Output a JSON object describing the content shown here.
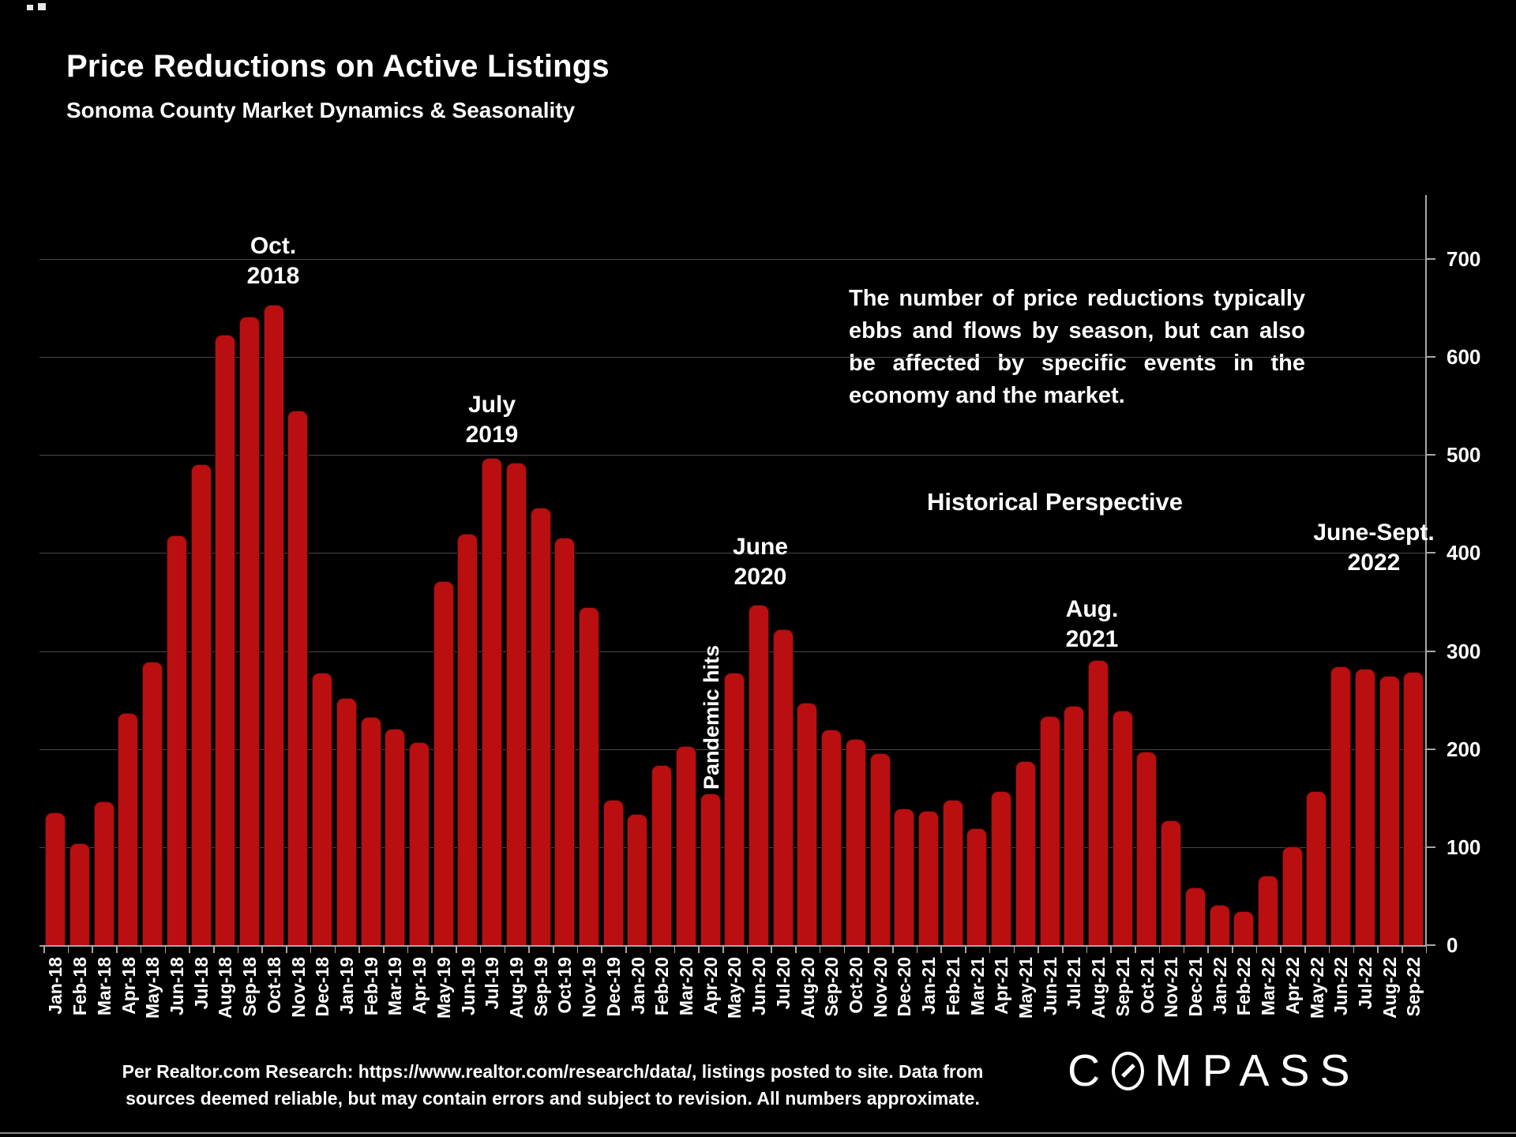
{
  "page": {
    "background": "#000000",
    "accent_red": "#b90f10",
    "bottom_rule_color": "#8a8a8a"
  },
  "header": {
    "title": "Price Reductions on Active Listings",
    "subtitle": "Sonoma County Market Dynamics & Seasonality"
  },
  "commentary": {
    "paragraph": "The number of price reductions typically ebbs and flows by season, but can also be affected by specific events in the economy and the market.",
    "heading": "Historical Perspective"
  },
  "footer": {
    "line1": "Per Realtor.com Research:  https://www.realtor.com/research/data/, listings posted to site. Data from",
    "line2": "sources deemed reliable, but may contain errors and subject to revision. All numbers approximate."
  },
  "brand": {
    "logo_text": "COMPASS",
    "prefix": "C",
    "suffix": "MPASS",
    "o_icon": "compass-slashed-o"
  },
  "chart_data": {
    "type": "bar",
    "title": "Price Reductions on Active Listings",
    "subtitle": "Sonoma County Market Dynamics & Seasonality",
    "xlabel": "",
    "ylabel": "",
    "ylim": [
      0,
      700
    ],
    "ytick_interval": 100,
    "yticks": [
      0,
      100,
      200,
      300,
      400,
      500,
      600,
      700
    ],
    "grid": "horizontal",
    "legend": "none",
    "bar_color": "#b90f10",
    "bar_border_color": "#3a0607",
    "categories": [
      "Jan-18",
      "Feb-18",
      "Mar-18",
      "Apr-18",
      "May-18",
      "Jun-18",
      "Jul-18",
      "Aug-18",
      "Sep-18",
      "Oct-18",
      "Nov-18",
      "Dec-18",
      "Jan-19",
      "Feb-19",
      "Mar-19",
      "Apr-19",
      "May-19",
      "Jun-19",
      "Jul-19",
      "Aug-19",
      "Sep-19",
      "Oct-19",
      "Nov-19",
      "Dec-19",
      "Jan-20",
      "Feb-20",
      "Mar-20",
      "Apr-20",
      "May-20",
      "Jun-20",
      "Jul-20",
      "Aug-20",
      "Sep-20",
      "Oct-20",
      "Nov-20",
      "Dec-20",
      "Jan-21",
      "Feb-21",
      "Mar-21",
      "Apr-21",
      "May-21",
      "Jun-21",
      "Jul-21",
      "Aug-21",
      "Sep-21",
      "Oct-21",
      "Nov-21",
      "Dec-21",
      "Jan-22",
      "Feb-22",
      "Mar-22",
      "Apr-22",
      "May-22",
      "Jun-22",
      "Jul-22",
      "Aug-22",
      "Sep-22"
    ],
    "values": [
      135,
      104,
      147,
      237,
      289,
      418,
      491,
      623,
      641,
      653,
      545,
      278,
      252,
      233,
      221,
      207,
      371,
      420,
      497,
      492,
      446,
      416,
      345,
      148,
      134,
      184,
      203,
      155,
      278,
      347,
      322,
      247,
      220,
      210,
      196,
      139,
      137,
      148,
      119,
      157,
      188,
      234,
      244,
      291,
      239,
      197,
      127,
      59,
      41,
      35,
      71,
      101,
      157,
      284,
      282,
      275,
      279
    ],
    "annotations": [
      {
        "id": "oct-2018",
        "lines": [
          "Oct.",
          "2018"
        ],
        "anchor_month": "Oct-18"
      },
      {
        "id": "july-2019",
        "lines": [
          "July",
          "2019"
        ],
        "anchor_month": "Jul-19"
      },
      {
        "id": "june-2020",
        "lines": [
          "June",
          "2020"
        ],
        "anchor_month": "Jun-20"
      },
      {
        "id": "pandemic-hits",
        "lines": [
          "Pandemic hits"
        ],
        "anchor_month": "Apr-20",
        "orientation": "vertical"
      },
      {
        "id": "aug-2021",
        "lines": [
          "Aug.",
          "2021"
        ],
        "anchor_month": "Aug-21"
      },
      {
        "id": "june-sept-2022",
        "lines": [
          "June-Sept.",
          "2022"
        ],
        "anchor_month": "Jul-22"
      }
    ]
  }
}
